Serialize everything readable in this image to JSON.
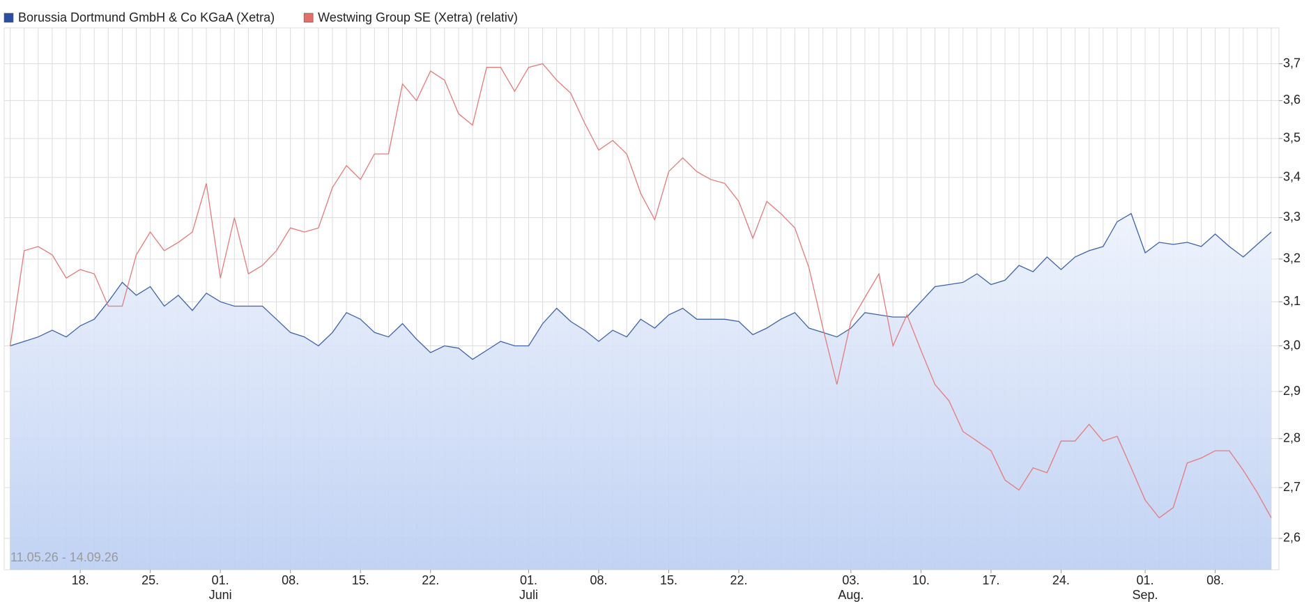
{
  "chart_data": {
    "type": "line",
    "log_scale": true,
    "grid": true,
    "annotation": "11.05.26 - 14.09.26",
    "categories": [
      null,
      null,
      null,
      null,
      null,
      "18.",
      null,
      null,
      null,
      null,
      "25.",
      null,
      null,
      null,
      null,
      "01.",
      null,
      null,
      null,
      null,
      "08.",
      null,
      null,
      null,
      null,
      "15.",
      null,
      null,
      null,
      null,
      "22.",
      null,
      null,
      null,
      null,
      null,
      null,
      "01.",
      null,
      null,
      null,
      null,
      "08.",
      null,
      null,
      null,
      null,
      "15.",
      null,
      null,
      null,
      null,
      "22.",
      null,
      null,
      null,
      null,
      null,
      null,
      null,
      "03.",
      null,
      null,
      null,
      null,
      "10.",
      null,
      null,
      null,
      null,
      "17.",
      null,
      null,
      null,
      null,
      "24.",
      null,
      null,
      null,
      null,
      null,
      "01.",
      null,
      null,
      null,
      null,
      "08.",
      null,
      null,
      null,
      null
    ],
    "category_months": [
      null,
      null,
      null,
      null,
      null,
      null,
      null,
      null,
      null,
      null,
      null,
      null,
      null,
      null,
      null,
      "Juni",
      null,
      null,
      null,
      null,
      null,
      null,
      null,
      null,
      null,
      null,
      null,
      null,
      null,
      null,
      null,
      null,
      null,
      null,
      null,
      null,
      null,
      "Juli",
      null,
      null,
      null,
      null,
      null,
      null,
      null,
      null,
      null,
      null,
      null,
      null,
      null,
      null,
      null,
      null,
      null,
      null,
      null,
      null,
      null,
      null,
      "Aug.",
      null,
      null,
      null,
      null,
      null,
      null,
      null,
      null,
      null,
      null,
      null,
      null,
      null,
      null,
      null,
      null,
      null,
      null,
      null,
      null,
      "Sep.",
      null,
      null,
      null,
      null,
      null,
      null,
      null,
      null,
      null
    ],
    "series": [
      {
        "name": "Borussia Dortmund GmbH & Co KGaA (Xetra)",
        "color": "#3d62ad",
        "legend_color": "#2a4fa0",
        "fill": true,
        "values": [
          3,
          3.01,
          3.02,
          3.035,
          3.02,
          3.045,
          3.06,
          3.1,
          3.145,
          3.115,
          3.135,
          3.09,
          3.115,
          3.08,
          3.12,
          3.1,
          3.09,
          3.09,
          3.09,
          3.06,
          3.03,
          3.02,
          3,
          3.03,
          3.075,
          3.06,
          3.03,
          3.02,
          3.05,
          3.015,
          2.985,
          3,
          2.995,
          2.97,
          2.99,
          3.01,
          3,
          3,
          3.05,
          3.085,
          3.055,
          3.035,
          3.01,
          3.035,
          3.02,
          3.06,
          3.04,
          3.07,
          3.085,
          3.06,
          3.06,
          3.06,
          3.055,
          3.025,
          3.04,
          3.06,
          3.075,
          3.04,
          3.03,
          3.02,
          3.04,
          3.075,
          3.07,
          3.065,
          3.065,
          3.1,
          3.135,
          3.14,
          3.145,
          3.165,
          3.14,
          3.15,
          3.185,
          3.17,
          3.205,
          3.175,
          3.205,
          3.22,
          3.23,
          3.29,
          3.31,
          3.215,
          3.24,
          3.235,
          3.24,
          3.23,
          3.26,
          3.23,
          3.205,
          3.235,
          3.265
        ]
      },
      {
        "name": "Westwing Group SE (Xetra) (relativ)",
        "color": "#e57a7a",
        "legend_color": "#e07068",
        "fill": false,
        "values": [
          3,
          3.22,
          3.23,
          3.21,
          3.155,
          3.175,
          3.165,
          3.09,
          3.09,
          3.21,
          3.265,
          3.22,
          3.24,
          3.265,
          3.385,
          3.155,
          3.3,
          3.165,
          3.185,
          3.22,
          3.275,
          3.265,
          3.275,
          3.375,
          3.43,
          3.395,
          3.46,
          3.46,
          3.645,
          3.6,
          3.68,
          3.655,
          3.565,
          3.535,
          3.69,
          3.69,
          3.625,
          3.69,
          3.7,
          3.655,
          3.62,
          3.54,
          3.47,
          3.495,
          3.46,
          3.36,
          3.295,
          3.415,
          3.45,
          3.415,
          3.395,
          3.385,
          3.34,
          3.25,
          3.34,
          3.31,
          3.275,
          3.18,
          3.04,
          2.915,
          3.055,
          3.11,
          3.165,
          3,
          3.07,
          2.99,
          2.915,
          2.88,
          2.815,
          2.795,
          2.775,
          2.715,
          2.695,
          2.74,
          2.73,
          2.795,
          2.795,
          2.83,
          2.795,
          2.805,
          2.74,
          2.675,
          2.64,
          2.66,
          2.75,
          2.76,
          2.775,
          2.775,
          2.735,
          2.69,
          2.64
        ]
      }
    ],
    "ylim": [
      2.54,
      3.8
    ],
    "yticks": [
      {
        "value": 2.6,
        "label": "2,6"
      },
      {
        "value": 2.7,
        "label": "2,7"
      },
      {
        "value": 2.8,
        "label": "2,8"
      },
      {
        "value": 2.9,
        "label": "2,9"
      },
      {
        "value": 3.0,
        "label": "3,0"
      },
      {
        "value": 3.1,
        "label": "3,1"
      },
      {
        "value": 3.2,
        "label": "3,2"
      },
      {
        "value": 3.3,
        "label": "3,3"
      },
      {
        "value": 3.4,
        "label": "3,4"
      },
      {
        "value": 3.5,
        "label": "3,5"
      },
      {
        "value": 3.6,
        "label": "3,6"
      },
      {
        "value": 3.7,
        "label": "3,7"
      }
    ]
  }
}
